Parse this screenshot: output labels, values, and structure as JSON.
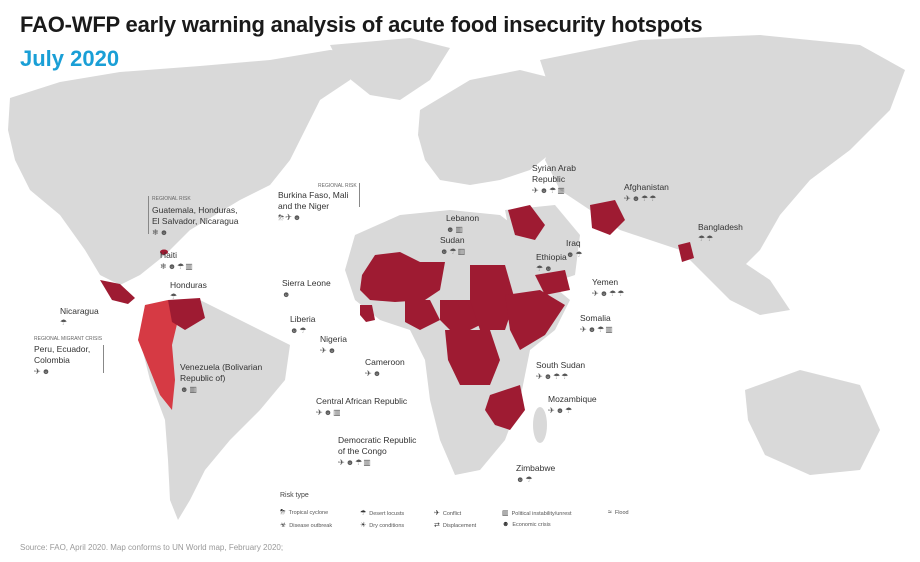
{
  "title": "FAO-WFP early warning analysis of acute food insecurity hotspots",
  "subtitle": "July 2020",
  "colors": {
    "land": "#d9d9d9",
    "hotspot": "#9e1b32",
    "regional": "#d63a44",
    "accent": "#1a9fd6",
    "sea": "#ffffff"
  },
  "labels": {
    "regional_risk_top": "REGIONAL RISK",
    "bf_group": "Burkina Faso, Mali\nand the Niger",
    "bf_icons": "⛈✈☻",
    "regional_risk_ca": "REGIONAL RISK",
    "ca_group": "Guatemala, Honduras,\nEl Salvador, Nicaragua",
    "ca_icons": "❄☻",
    "haiti": "Haiti",
    "haiti_icons": "❄☻☂▥",
    "honduras": "Honduras",
    "honduras_icons": "☂",
    "nicaragua": "Nicaragua",
    "nicaragua_icons": "☂",
    "regional_migrant": "REGIONAL MIGRANT CRISIS",
    "peru_group": "Peru, Ecuador,\nColombia",
    "peru_icons": "✈☻",
    "venezuela": "Venezuela (Bolivarian\nRepublic of)",
    "venezuela_icons": "☻▥",
    "sierra_leone": "Sierra Leone",
    "sierra_icons": "☻",
    "liberia": "Liberia",
    "liberia_icons": "☻☂",
    "nigeria": "Nigeria",
    "nigeria_icons": "✈☻",
    "cameroon": "Cameroon",
    "cameroon_icons": "✈☻",
    "car": "Central African Republic",
    "car_icons": "✈☻▥",
    "drc": "Democratic Republic\nof the Congo",
    "drc_icons": "✈☻☂▥",
    "zimbabwe": "Zimbabwe",
    "zimbabwe_icons": "☻☂",
    "mozambique": "Mozambique",
    "mozambique_icons": "✈☻☂",
    "south_sudan": "South Sudan",
    "south_sudan_icons": "✈☻☂☂",
    "somalia": "Somalia",
    "somalia_icons": "✈☻☂▥",
    "yemen": "Yemen",
    "yemen_icons": "✈☻☂☂",
    "ethiopia": "Ethiopia",
    "ethiopia_icons": "☂☻",
    "sudan": "Sudan",
    "sudan_icons": "☻☂▥",
    "lebanon": "Lebanon",
    "lebanon_icons": "☻▥",
    "iraq": "Iraq",
    "iraq_icons": "☻☂",
    "syria": "Syrian Arab\nRepublic",
    "syria_icons": "✈☻☂▥",
    "afghanistan": "Afghanistan",
    "afghanistan_icons": "✈☻☂☂",
    "bangladesh": "Bangladesh",
    "bangladesh_icons": "☂☂"
  },
  "legend": {
    "title": "Risk type",
    "items": [
      {
        "glyph": "⛈",
        "label": "Tropical cyclone"
      },
      {
        "glyph": "☣",
        "label": "Disease outbreak"
      },
      {
        "glyph": "☂",
        "label": "Desert locusts"
      },
      {
        "glyph": "☀",
        "label": "Dry conditions"
      },
      {
        "glyph": "✈",
        "label": "Conflict"
      },
      {
        "glyph": "⇄",
        "label": "Displacement"
      },
      {
        "glyph": "▥",
        "label": "Political instability/unrest"
      },
      {
        "glyph": "☻",
        "label": "Economic crisis"
      },
      {
        "glyph": "≈",
        "label": "Flood"
      }
    ]
  },
  "source": "Source: FAO, April 2020. Map conforms to UN World map, February 2020;"
}
